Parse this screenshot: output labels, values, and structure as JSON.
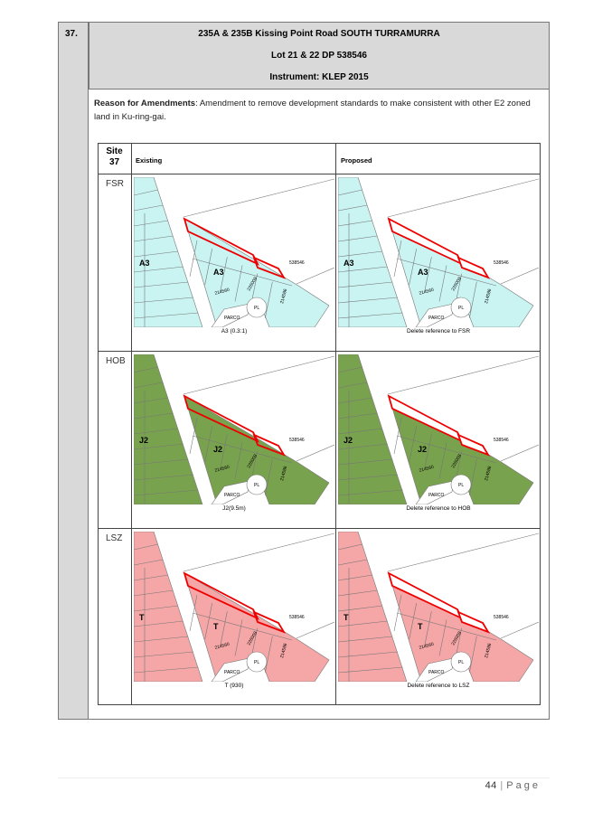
{
  "item": {
    "number": "37.",
    "title": "235A & 235B Kissing Point Road SOUTH TURRAMURRA",
    "lot": "Lot 21 & 22 DP 538546",
    "instrument": "Instrument: KLEP 2015"
  },
  "reason": {
    "label": "Reason for Amendments",
    "text": ": Amendment to remove development standards to make consistent with other E2 zoned land in Ku-ring-gai."
  },
  "site_table": {
    "site_label": "Site",
    "site_number": "37",
    "existing_header": "Existing",
    "proposed_header": "Proposed",
    "rows": [
      {
        "name": "FSR",
        "fill": "#c9f4f2",
        "existing": {
          "zone_label": "A3",
          "caption": "A3 (0.3:1)"
        },
        "proposed": {
          "zone_label": "A3",
          "caption": "Delete reference to FSR"
        }
      },
      {
        "name": "HOB",
        "fill": "#79a24e",
        "existing": {
          "zone_label": "J2",
          "caption": "J2(9.5m)"
        },
        "proposed": {
          "zone_label": "J2",
          "caption": "Delete reference to HOB"
        }
      },
      {
        "name": "LSZ",
        "fill": "#f5a6a6",
        "existing": {
          "zone_label": "T",
          "caption": "T (930)"
        },
        "proposed": {
          "zone_label": "T",
          "caption": "Delete reference to LSZ"
        }
      }
    ]
  },
  "map_text": [
    "538546",
    "214586",
    "226008",
    "214560",
    "PARCO",
    "PL"
  ],
  "footer": {
    "page_number": "44",
    "separator": "|",
    "page_word": "Page"
  }
}
